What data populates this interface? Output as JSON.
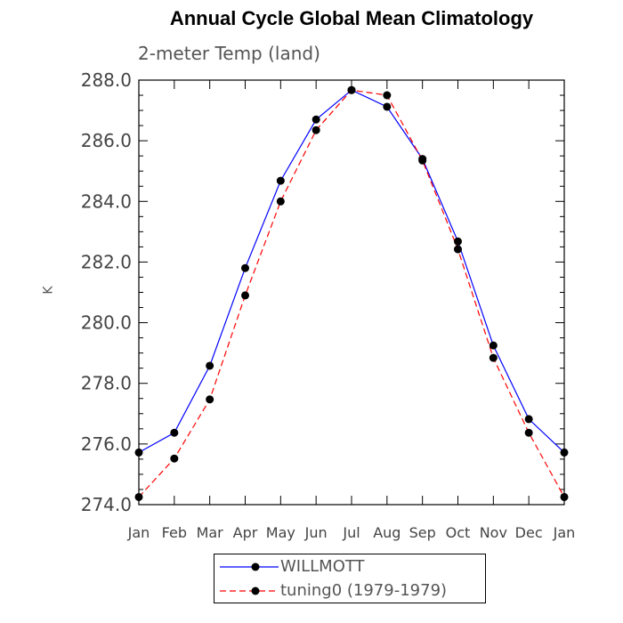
{
  "chart_data": {
    "type": "line",
    "title": "Annual Cycle Global Mean Climatology",
    "subtitle": "2-meter Temp (land)",
    "xlabel": "",
    "ylabel": "K",
    "categories": [
      "Jan",
      "Feb",
      "Mar",
      "Apr",
      "May",
      "Jun",
      "Jul",
      "Aug",
      "Sep",
      "Oct",
      "Nov",
      "Dec",
      "Jan"
    ],
    "ylim": [
      274.0,
      288.0
    ],
    "yticks": [
      "274.0",
      "276.0",
      "278.0",
      "280.0",
      "282.0",
      "284.0",
      "286.0",
      "288.0"
    ],
    "grid": false,
    "legend_position": "bottom",
    "series": [
      {
        "name": "WILLMOTT",
        "color": "#0000ff",
        "line_style": "solid",
        "values": [
          275.72,
          276.37,
          278.58,
          281.8,
          284.68,
          286.7,
          287.67,
          287.12,
          285.4,
          282.68,
          279.25,
          276.82,
          275.72
        ]
      },
      {
        "name": "tuning0 (1979-1979)",
        "color": "#ff0000",
        "line_style": "dashed",
        "values": [
          274.25,
          275.52,
          277.47,
          280.9,
          284.0,
          286.35,
          287.67,
          287.5,
          285.35,
          282.42,
          278.84,
          276.37,
          274.25
        ]
      }
    ]
  }
}
